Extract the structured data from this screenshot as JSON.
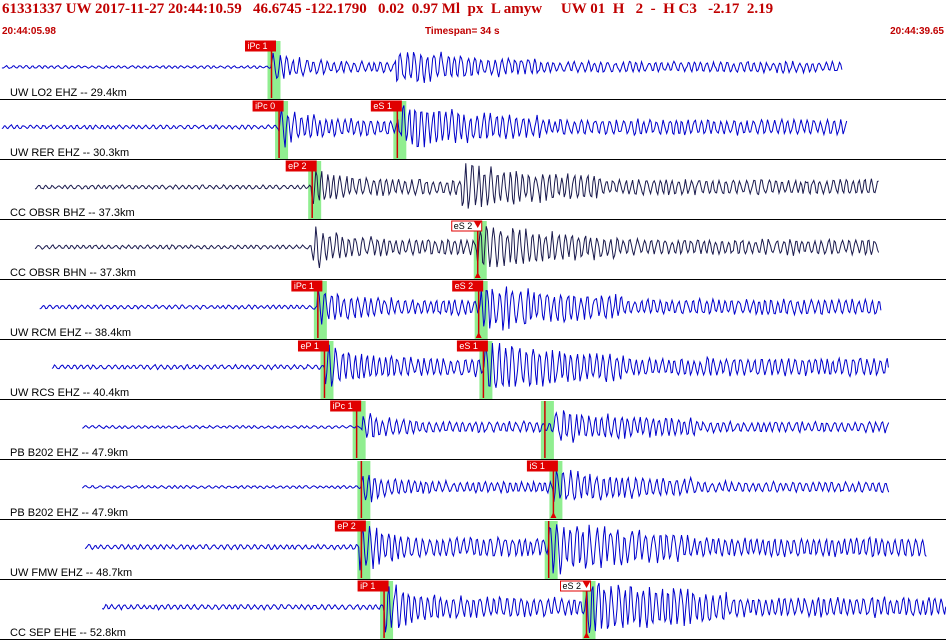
{
  "header": {
    "event_line": "61331337 UW 2017-11-27 20:44:10.59   46.6745 -122.1790   0.02  0.97 Ml  px  L amyw     UW 01  H   2  -  H C3   -2.17  2.19",
    "start_time": "20:44:05.98",
    "timespan": "Timespan=  34 s",
    "end_time": "20:44:39.65"
  },
  "colors": {
    "header_text": "#c00000",
    "trace_blue": "#0000cc",
    "trace_dark": "#1a1a4d",
    "pick_box": "#e00000",
    "pick_line": "#d00000",
    "highlight": "#90ee90",
    "separator": "#000000"
  },
  "icons": {
    "pick_marker": "down-triangle-icon"
  },
  "traces": [
    {
      "label": "UW LO2 EHZ -- 29.4km",
      "color": "blue",
      "start": 0.2,
      "end": 89.0,
      "amp": 0.5,
      "onset_p": 28.7,
      "onset_s": 41.8,
      "picks": [
        {
          "label": "iPc 1",
          "type": "P",
          "time": 28.7,
          "box": "red",
          "hl": true
        }
      ]
    },
    {
      "label": "UW RER EHZ -- 30.3km",
      "color": "blue",
      "start": 0.2,
      "end": 89.6,
      "amp": 0.7,
      "onset_p": 29.5,
      "onset_s": 42.4,
      "picks": [
        {
          "label": "iPc 0",
          "type": "P",
          "time": 29.5,
          "box": "red",
          "hl": true
        },
        {
          "label": "eS 1",
          "type": "S",
          "time": 42.0,
          "box": "red",
          "hl": true
        }
      ]
    },
    {
      "label": "CC OBSR BHZ -- 37.3km",
      "color": "dark",
      "start": 3.7,
      "end": 92.9,
      "amp": 0.7,
      "onset_p": 33.0,
      "onset_s": 48.7,
      "picks": [
        {
          "label": "eP 2",
          "type": "P",
          "time": 33.0,
          "box": "red",
          "hl": true
        }
      ]
    },
    {
      "label": "CC OBSR BHN -- 37.3km",
      "color": "dark",
      "start": 3.7,
      "end": 92.9,
      "amp": 0.7,
      "onset_p": 33.0,
      "onset_s": 50.5,
      "picks": [
        {
          "label": "eS 2",
          "type": "S",
          "time": 50.5,
          "box": "white",
          "hl": true,
          "marker": true
        }
      ]
    },
    {
      "label": "UW RCM EHZ -- 38.4km",
      "color": "blue",
      "start": 4.2,
      "end": 93.2,
      "amp": 0.7,
      "onset_p": 33.6,
      "onset_s": 50.8,
      "picks": [
        {
          "label": "iPc 1",
          "type": "P",
          "time": 33.6,
          "box": "red",
          "hl": true
        },
        {
          "label": "eS 2",
          "type": "S",
          "time": 50.6,
          "box": "red",
          "hl": true,
          "marker": true
        }
      ]
    },
    {
      "label": "UW RCS EHZ -- 40.4km",
      "color": "blue",
      "start": 5.5,
      "end": 94.0,
      "amp": 0.8,
      "onset_p": 34.3,
      "onset_s": 51.1,
      "picks": [
        {
          "label": "eP 1",
          "type": "P",
          "time": 34.3,
          "box": "red",
          "hl": true
        },
        {
          "label": "eS 1",
          "type": "S",
          "time": 51.1,
          "box": "red",
          "hl": true
        }
      ]
    },
    {
      "label": "PB B202 EHZ -- 47.9km",
      "color": "blue",
      "start": 8.7,
      "end": 94.0,
      "amp": 0.5,
      "onset_p": 38.2,
      "onset_s": 58.5,
      "picks": [
        {
          "label": "iPc 1",
          "type": "P",
          "time": 37.7,
          "box": "red",
          "hl": true
        },
        {
          "label": "",
          "type": "S",
          "time": 57.6,
          "box": "none",
          "hl": true
        }
      ]
    },
    {
      "label": "PB B202 EHZ -- 47.9km",
      "color": "blue",
      "start": 8.7,
      "end": 94.0,
      "amp": 0.5,
      "onset_p": 38.2,
      "onset_s": 58.5,
      "picks": [
        {
          "label": "",
          "type": "P",
          "time": 38.2,
          "box": "none",
          "hl": true
        },
        {
          "label": "iS 1",
          "type": "S",
          "time": 58.5,
          "box": "red",
          "hl": true,
          "marker": true
        }
      ]
    },
    {
      "label": "UW FMW EHZ -- 48.7km",
      "color": "blue",
      "start": 9.0,
      "end": 98.0,
      "amp": 0.85,
      "onset_p": 38.0,
      "onset_s": 58.0,
      "picks": [
        {
          "label": "eP 2",
          "type": "P",
          "time": 38.2,
          "box": "red",
          "hl": true
        },
        {
          "label": "",
          "type": "S",
          "time": 58.0,
          "box": "none",
          "hl": true
        }
      ]
    },
    {
      "label": "CC SEP EHE -- 52.8km",
      "color": "blue",
      "start": 10.8,
      "end": 100.0,
      "amp": 0.9,
      "onset_p": 40.6,
      "onset_s": 62.0,
      "picks": [
        {
          "label": "iP 1",
          "type": "P",
          "time": 40.6,
          "box": "red",
          "hl": true
        },
        {
          "label": "eS 2",
          "type": "S",
          "time": 62.0,
          "box": "white",
          "hl": true,
          "marker": true
        }
      ]
    }
  ]
}
